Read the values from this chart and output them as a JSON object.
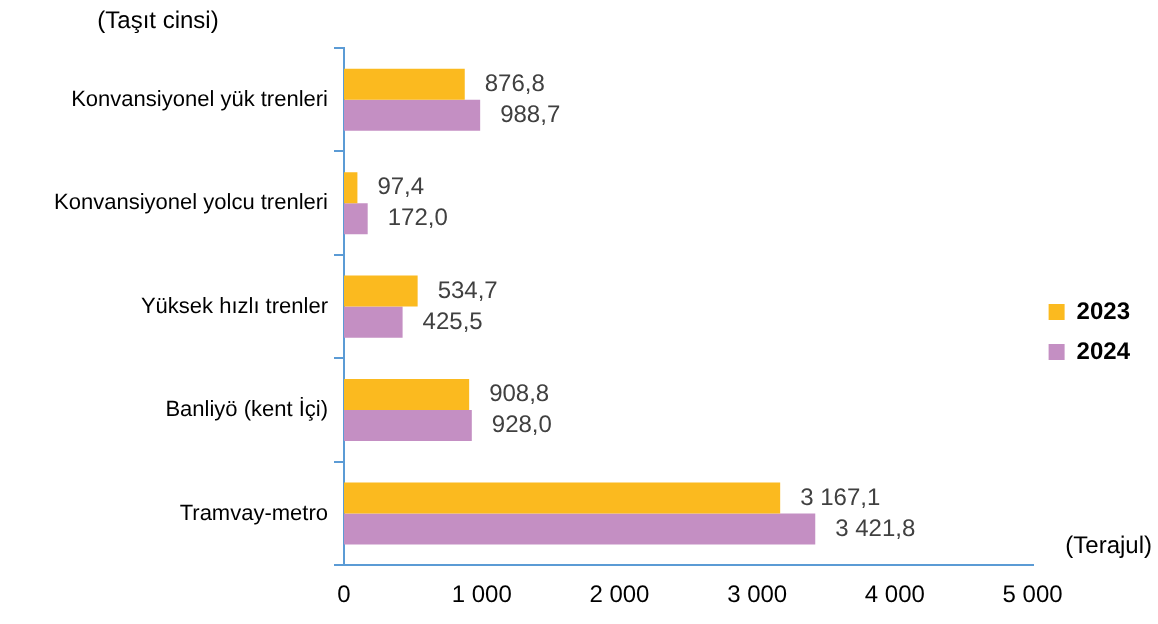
{
  "chart_data": {
    "type": "bar",
    "orientation": "horizontal",
    "ylabel": "(Taşıt cinsi)",
    "xlabel": "(Terajul)",
    "categories": [
      "Konvansiyonel yük trenleri",
      "Konvansiyonel yolcu trenleri",
      "Yüksek hızlı trenler",
      "Banliyö (kent İçi)",
      "Tramvay-metro"
    ],
    "series": [
      {
        "name": "2023",
        "color": "#fbba1f",
        "values": [
          876.8,
          97.4,
          534.7,
          908.8,
          3167.1
        ],
        "value_labels": [
          "876,8",
          "97,4",
          "534,7",
          "908,8",
          "3 167,1"
        ]
      },
      {
        "name": "2024",
        "color": "#c48fc3",
        "values": [
          988.7,
          172.0,
          425.5,
          928.0,
          3421.8
        ],
        "value_labels": [
          "988,7",
          "172,0",
          "425,5",
          "928,0",
          "3 421,8"
        ]
      }
    ],
    "xlim": [
      0,
      5000
    ],
    "xticks": [
      0,
      {
        "value": 1000,
        "label": "1 000"
      },
      {
        "value": 2000,
        "label": "2 000"
      },
      {
        "value": 3000,
        "label": "3 000"
      },
      {
        "value": 4000,
        "label": "4 000"
      },
      {
        "value": 5000,
        "label": "5 000"
      }
    ],
    "grid": false,
    "legend": "right"
  }
}
